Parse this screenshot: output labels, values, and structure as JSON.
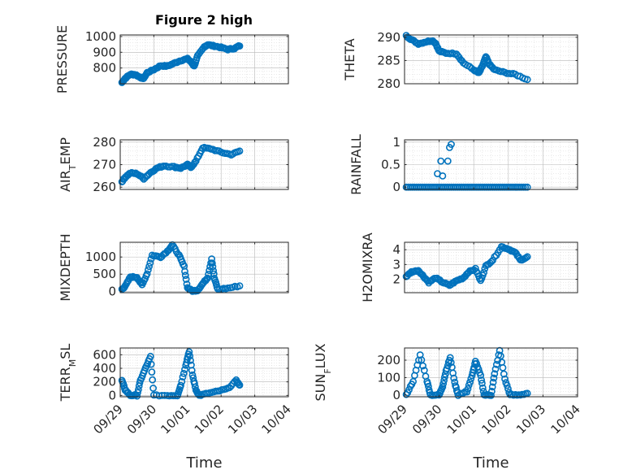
{
  "figure_title": "Figure 2 high",
  "chart_data": [
    {
      "id": "pressure",
      "type": "scatter",
      "ylabel_parts": [
        [
          "PRESSURE",
          ""
        ]
      ],
      "title": "Figure 2 high",
      "ylim": [
        700,
        1010
      ],
      "yticks": [
        800,
        900,
        1000
      ],
      "yticklabels": [
        "800",
        "900",
        "1000"
      ],
      "xlim": [
        0,
        5
      ],
      "xticks": [
        0,
        1,
        2,
        3,
        4,
        5
      ],
      "show_xticklabels": false,
      "series": [
        {
          "keypoints": [
            [
              0.05,
              708
            ],
            [
              0.15,
              735
            ],
            [
              0.3,
              760
            ],
            [
              0.45,
              758
            ],
            [
              0.6,
              740
            ],
            [
              0.7,
              735
            ],
            [
              0.8,
              770
            ],
            [
              1.0,
              790
            ],
            [
              1.2,
              815
            ],
            [
              1.4,
              812
            ],
            [
              1.6,
              830
            ],
            [
              1.8,
              848
            ],
            [
              2.0,
              858
            ],
            [
              2.1,
              840
            ],
            [
              2.2,
              812
            ],
            [
              2.3,
              875
            ],
            [
              2.5,
              935
            ],
            [
              2.6,
              948
            ],
            [
              2.8,
              940
            ],
            [
              3.0,
              930
            ],
            [
              3.2,
              918
            ],
            [
              3.4,
              925
            ],
            [
              3.55,
              942
            ]
          ]
        }
      ]
    },
    {
      "id": "theta",
      "type": "scatter",
      "ylabel_parts": [
        [
          "THETA",
          ""
        ]
      ],
      "ylim": [
        280,
        290.5
      ],
      "yticks": [
        280,
        285,
        290
      ],
      "yticklabels": [
        "280",
        "285",
        "290"
      ],
      "xlim": [
        0,
        5
      ],
      "xticks": [
        0,
        1,
        2,
        3,
        4,
        5
      ],
      "show_xticklabels": false,
      "series": [
        {
          "keypoints": [
            [
              0.05,
              290.3
            ],
            [
              0.2,
              289.5
            ],
            [
              0.4,
              288.6
            ],
            [
              0.6,
              289.0
            ],
            [
              0.8,
              289.3
            ],
            [
              0.9,
              288.7
            ],
            [
              1.0,
              287.0
            ],
            [
              1.2,
              286.6
            ],
            [
              1.5,
              286.5
            ],
            [
              1.7,
              284.5
            ],
            [
              2.0,
              283.0
            ],
            [
              2.15,
              282.3
            ],
            [
              2.25,
              283.8
            ],
            [
              2.35,
              285.8
            ],
            [
              2.45,
              284.2
            ],
            [
              2.6,
              283.0
            ],
            [
              2.9,
              282.4
            ],
            [
              3.2,
              282.0
            ],
            [
              3.55,
              280.9
            ]
          ]
        }
      ]
    },
    {
      "id": "air_temp",
      "type": "scatter",
      "ylabel_parts": [
        [
          "AIR",
          ""
        ],
        [
          "T",
          "sub"
        ],
        [
          "EMP",
          ""
        ]
      ],
      "ylim": [
        259,
        281
      ],
      "yticks": [
        260,
        270,
        280
      ],
      "yticklabels": [
        "260",
        "270",
        "280"
      ],
      "xlim": [
        0,
        5
      ],
      "xticks": [
        0,
        1,
        2,
        3,
        4,
        5
      ],
      "show_xticklabels": false,
      "series": [
        {
          "keypoints": [
            [
              0.05,
              262.5
            ],
            [
              0.15,
              264.5
            ],
            [
              0.3,
              266.3
            ],
            [
              0.5,
              266.0
            ],
            [
              0.7,
              263.8
            ],
            [
              0.9,
              266.5
            ],
            [
              1.1,
              268.5
            ],
            [
              1.3,
              269.5
            ],
            [
              1.6,
              269.0
            ],
            [
              1.8,
              268.5
            ],
            [
              2.0,
              270.0
            ],
            [
              2.1,
              268.8
            ],
            [
              2.25,
              271.5
            ],
            [
              2.45,
              277.5
            ],
            [
              2.7,
              277.0
            ],
            [
              3.0,
              275.5
            ],
            [
              3.3,
              274.5
            ],
            [
              3.55,
              276.0
            ]
          ]
        }
      ]
    },
    {
      "id": "rainfall",
      "type": "scatter",
      "ylabel_parts": [
        [
          "RAINFALL",
          ""
        ]
      ],
      "ylim": [
        -0.05,
        1.05
      ],
      "yticks": [
        0,
        0.5,
        1
      ],
      "yticklabels": [
        "0",
        "0.5",
        "1"
      ],
      "xlim": [
        0,
        5
      ],
      "xticks": [
        0,
        1,
        2,
        3,
        4,
        5
      ],
      "show_xticklabels": false,
      "series": [
        {
          "baseline": {
            "x0": 0.05,
            "x1": 3.55,
            "y": 0,
            "n": 60
          },
          "extra": [
            [
              0.95,
              0.3
            ],
            [
              1.05,
              0.58
            ],
            [
              1.1,
              0.25
            ],
            [
              1.25,
              0.58
            ],
            [
              1.3,
              0.88
            ],
            [
              1.35,
              0.95
            ]
          ]
        }
      ]
    },
    {
      "id": "mixdepth",
      "type": "scatter",
      "ylabel_parts": [
        [
          "MIXDEPTH",
          ""
        ]
      ],
      "ylim": [
        -40,
        1430
      ],
      "yticks": [
        0,
        500,
        1000
      ],
      "yticklabels": [
        "0",
        "500",
        "1000"
      ],
      "xlim": [
        0,
        5
      ],
      "xticks": [
        0,
        1,
        2,
        3,
        4,
        5
      ],
      "show_xticklabels": false,
      "series": [
        {
          "keypoints": [
            [
              0.05,
              60
            ],
            [
              0.15,
              150
            ],
            [
              0.3,
              420
            ],
            [
              0.5,
              410
            ],
            [
              0.65,
              180
            ],
            [
              0.8,
              520
            ],
            [
              0.95,
              1050
            ],
            [
              1.2,
              1000
            ],
            [
              1.4,
              1170
            ],
            [
              1.55,
              1350
            ],
            [
              1.75,
              1050
            ],
            [
              1.9,
              720
            ],
            [
              2.0,
              100
            ],
            [
              2.15,
              10
            ],
            [
              2.3,
              30
            ],
            [
              2.45,
              220
            ],
            [
              2.6,
              400
            ],
            [
              2.72,
              950
            ],
            [
              2.8,
              380
            ],
            [
              2.9,
              60
            ],
            [
              3.2,
              90
            ],
            [
              3.55,
              160
            ]
          ]
        }
      ]
    },
    {
      "id": "h2omixra",
      "type": "scatter",
      "ylabel_parts": [
        [
          "H2OMIXRA",
          ""
        ]
      ],
      "ylim": [
        1.1,
        4.5
      ],
      "yticks": [
        2,
        3,
        4
      ],
      "yticklabels": [
        "2",
        "3",
        "4"
      ],
      "xlim": [
        0,
        5
      ],
      "xticks": [
        0,
        1,
        2,
        3,
        4,
        5
      ],
      "show_xticklabels": false,
      "series": [
        {
          "keypoints": [
            [
              0.05,
              2.2
            ],
            [
              0.2,
              2.5
            ],
            [
              0.4,
              2.6
            ],
            [
              0.55,
              2.2
            ],
            [
              0.7,
              1.8
            ],
            [
              0.9,
              2.1
            ],
            [
              1.1,
              1.8
            ],
            [
              1.3,
              1.6
            ],
            [
              1.5,
              1.9
            ],
            [
              1.7,
              2.1
            ],
            [
              1.85,
              2.5
            ],
            [
              2.05,
              2.7
            ],
            [
              2.2,
              1.9
            ],
            [
              2.35,
              2.9
            ],
            [
              2.55,
              3.3
            ],
            [
              2.8,
              4.2
            ],
            [
              3.0,
              4.05
            ],
            [
              3.2,
              3.8
            ],
            [
              3.35,
              3.3
            ],
            [
              3.55,
              3.5
            ]
          ]
        }
      ]
    },
    {
      "id": "terr_msl",
      "type": "scatter",
      "ylabel_parts": [
        [
          "TERR",
          ""
        ],
        [
          "M",
          "sub"
        ],
        [
          "SL",
          ""
        ]
      ],
      "ylim": [
        -20,
        700
      ],
      "yticks": [
        0,
        200,
        400,
        600
      ],
      "yticklabels": [
        "0",
        "200",
        "400",
        "600"
      ],
      "xlim": [
        0,
        5
      ],
      "xticks": [
        0,
        1,
        2,
        3,
        4,
        5
      ],
      "xticklabels": [
        "09/29",
        "09/30",
        "10/01",
        "10/02",
        "10/03",
        "10/04"
      ],
      "show_xticklabels": true,
      "xlabel": "Time",
      "series": [
        {
          "keypoints": [
            [
              0.05,
              220
            ],
            [
              0.15,
              80
            ],
            [
              0.3,
              0
            ],
            [
              0.5,
              0
            ],
            [
              0.6,
              220
            ],
            [
              0.75,
              400
            ],
            [
              0.9,
              570
            ],
            [
              1.0,
              0
            ],
            [
              1.4,
              0
            ],
            [
              1.7,
              0
            ],
            [
              1.8,
              150
            ],
            [
              1.95,
              450
            ],
            [
              2.05,
              650
            ],
            [
              2.15,
              300
            ],
            [
              2.25,
              80
            ],
            [
              2.35,
              0
            ],
            [
              2.6,
              30
            ],
            [
              2.9,
              60
            ],
            [
              3.2,
              100
            ],
            [
              3.45,
              220
            ],
            [
              3.55,
              150
            ]
          ]
        }
      ]
    },
    {
      "id": "sun_flux",
      "type": "scatter",
      "ylabel_parts": [
        [
          "SUN",
          ""
        ],
        [
          "F",
          "sub"
        ],
        [
          "LUX",
          ""
        ]
      ],
      "ylim": [
        -10,
        270
      ],
      "yticks": [
        0,
        100,
        200
      ],
      "yticklabels": [
        "0",
        "100",
        "200"
      ],
      "xlim": [
        0,
        5
      ],
      "xticks": [
        0,
        1,
        2,
        3,
        4,
        5
      ],
      "xticklabels": [
        "09/29",
        "09/30",
        "10/01",
        "10/02",
        "10/03",
        "10/04"
      ],
      "show_xticklabels": true,
      "xlabel": "Time",
      "series": [
        {
          "keypoints": [
            [
              0.05,
              0
            ],
            [
              0.25,
              80
            ],
            [
              0.45,
              230
            ],
            [
              0.65,
              80
            ],
            [
              0.75,
              0
            ],
            [
              1.0,
              0
            ],
            [
              1.1,
              50
            ],
            [
              1.2,
              140
            ],
            [
              1.32,
              215
            ],
            [
              1.45,
              70
            ],
            [
              1.55,
              0
            ],
            [
              1.8,
              20
            ],
            [
              1.95,
              110
            ],
            [
              2.05,
              195
            ],
            [
              2.2,
              110
            ],
            [
              2.3,
              0
            ],
            [
              2.5,
              0
            ],
            [
              2.6,
              120
            ],
            [
              2.75,
              255
            ],
            [
              2.9,
              90
            ],
            [
              3.05,
              0
            ],
            [
              3.3,
              0
            ],
            [
              3.55,
              10
            ]
          ]
        }
      ]
    }
  ]
}
